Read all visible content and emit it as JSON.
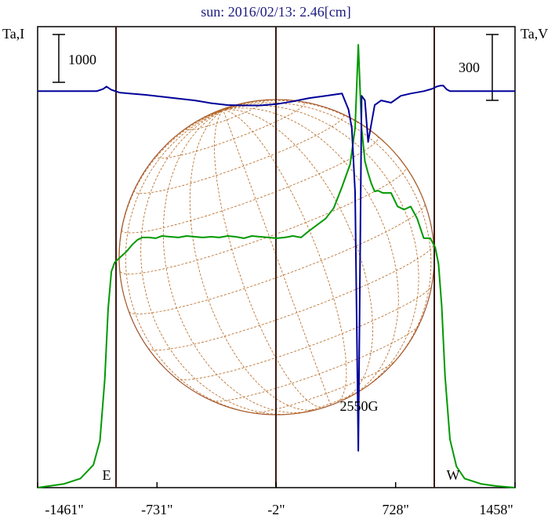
{
  "chart_data": {
    "type": "line",
    "title": "sun: 2016/02/13: 2.46[cm]",
    "left_axis_label": "Ta,I",
    "right_axis_label": "Ta,V",
    "left_scale_bar_label": "1000",
    "right_scale_bar_label": "300",
    "x_ticks": [
      "-1461\"",
      "-731\"",
      "-2\"",
      "728\"",
      "1458\""
    ],
    "x_tick_values": [
      -1461,
      -731,
      -2,
      728,
      1458
    ],
    "xlim": [
      -1461,
      1458
    ],
    "limb_labels": {
      "east": "E",
      "west": "W"
    },
    "annotation": "2550G",
    "series": [
      {
        "id": "I",
        "color": "#009900",
        "x": [
          -1461,
          -1300,
          -1200,
          -1120,
          -1080,
          -1050,
          -1030,
          -1010,
          -990,
          -970,
          -950,
          -920,
          -880,
          -850,
          -820,
          -780,
          -740,
          -700,
          -650,
          -600,
          -550,
          -500,
          -450,
          -400,
          -350,
          -300,
          -250,
          -200,
          -150,
          -100,
          -50,
          0,
          50,
          100,
          150,
          200,
          250,
          300,
          350,
          400,
          450,
          480,
          500,
          520,
          540,
          560,
          580,
          600,
          620,
          650,
          700,
          740,
          780,
          820,
          860,
          900,
          940,
          970,
          990,
          1010,
          1030,
          1060,
          1100,
          1150,
          1250,
          1350,
          1458
        ],
        "y": [
          0,
          25,
          60,
          150,
          310,
          720,
          1180,
          1430,
          1490,
          1510,
          1530,
          1560,
          1610,
          1640,
          1655,
          1655,
          1650,
          1665,
          1660,
          1655,
          1665,
          1660,
          1655,
          1660,
          1655,
          1665,
          1660,
          1650,
          1665,
          1660,
          1655,
          1650,
          1655,
          1665,
          1655,
          1700,
          1740,
          1780,
          1850,
          1990,
          2140,
          2380,
          2930,
          2380,
          2160,
          2080,
          2010,
          1960,
          1965,
          1950,
          1950,
          1860,
          1840,
          1860,
          1780,
          1650,
          1650,
          1590,
          1480,
          1200,
          740,
          320,
          140,
          60,
          25,
          10,
          0
        ],
        "ylim": [
          0,
          3050
        ]
      },
      {
        "id": "V",
        "color": "#000099",
        "x": [
          -1461,
          -1200,
          -1100,
          -1060,
          -1040,
          -1010,
          -960,
          -900,
          -800,
          -700,
          -600,
          -500,
          -400,
          -300,
          -200,
          -100,
          0,
          100,
          200,
          300,
          400,
          440,
          460,
          480,
          500,
          520,
          540,
          560,
          580,
          600,
          640,
          700,
          760,
          820,
          900,
          950,
          980,
          1000,
          1020,
          1040,
          1060,
          1100,
          1200,
          1300,
          1458
        ],
        "y": [
          0,
          0,
          0,
          5,
          10,
          3,
          -3,
          -5,
          -8,
          -12,
          -16,
          -20,
          -26,
          -30,
          -31,
          -31,
          -28,
          -22,
          -15,
          -10,
          -5,
          -40,
          -80,
          -220,
          -780,
          -10,
          -20,
          -110,
          -70,
          -30,
          -20,
          -25,
          -10,
          -5,
          0,
          5,
          10,
          12,
          12,
          4,
          0,
          0,
          0,
          0,
          0
        ],
        "ylim": [
          -860,
          140
        ]
      }
    ]
  }
}
